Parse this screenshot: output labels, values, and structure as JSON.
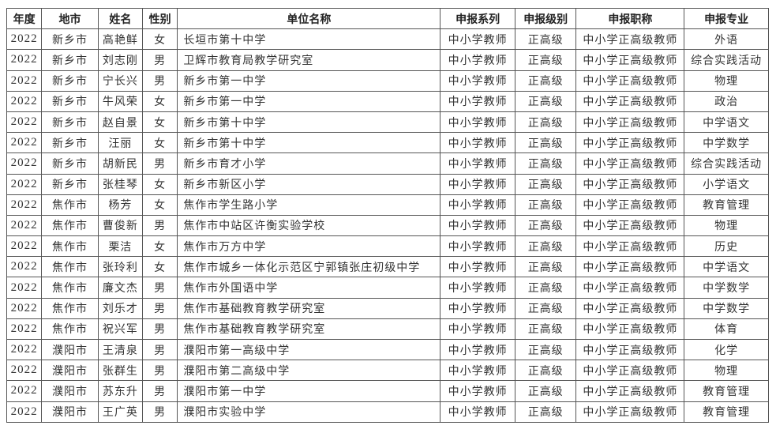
{
  "table": {
    "headers": [
      "年度",
      "地市",
      "姓名",
      "性别",
      "单位名称",
      "申报系列",
      "申报级别",
      "申报职称",
      "申报专业"
    ],
    "rows": [
      [
        "2022",
        "新乡市",
        "高艳鲜",
        "女",
        "长垣市第十中学",
        "中小学教师",
        "正高级",
        "中小学正高级教师",
        "外语"
      ],
      [
        "2022",
        "新乡市",
        "刘志刚",
        "男",
        "卫辉市教育局教学研究室",
        "中小学教师",
        "正高级",
        "中小学正高级教师",
        "综合实践活动"
      ],
      [
        "2022",
        "新乡市",
        "宁长兴",
        "男",
        "新乡市第一中学",
        "中小学教师",
        "正高级",
        "中小学正高级教师",
        "物理"
      ],
      [
        "2022",
        "新乡市",
        "牛风荣",
        "女",
        "新乡市第一中学",
        "中小学教师",
        "正高级",
        "中小学正高级教师",
        "政治"
      ],
      [
        "2022",
        "新乡市",
        "赵自景",
        "女",
        "新乡市第十中学",
        "中小学教师",
        "正高级",
        "中小学正高级教师",
        "中学语文"
      ],
      [
        "2022",
        "新乡市",
        "汪丽",
        "女",
        "新乡市第十中学",
        "中小学教师",
        "正高级",
        "中小学正高级教师",
        "中学数学"
      ],
      [
        "2022",
        "新乡市",
        "胡新民",
        "男",
        "新乡市育才小学",
        "中小学教师",
        "正高级",
        "中小学正高级教师",
        "综合实践活动"
      ],
      [
        "2022",
        "新乡市",
        "张桂琴",
        "女",
        "新乡市新区小学",
        "中小学教师",
        "正高级",
        "中小学正高级教师",
        "小学语文"
      ],
      [
        "2022",
        "焦作市",
        "杨芳",
        "女",
        "焦作市学生路小学",
        "中小学教师",
        "正高级",
        "中小学正高级教师",
        "教育管理"
      ],
      [
        "2022",
        "焦作市",
        "曹俊新",
        "男",
        "焦作市中站区许衡实验学校",
        "中小学教师",
        "正高级",
        "中小学正高级教师",
        "物理"
      ],
      [
        "2022",
        "焦作市",
        "栗洁",
        "女",
        "焦作市万方中学",
        "中小学教师",
        "正高级",
        "中小学正高级教师",
        "历史"
      ],
      [
        "2022",
        "焦作市",
        "张玲利",
        "女",
        "焦作市城乡一体化示范区宁郭镇张庄初级中学",
        "中小学教师",
        "正高级",
        "中小学正高级教师",
        "中学语文"
      ],
      [
        "2022",
        "焦作市",
        "廉文杰",
        "男",
        "焦作市外国语中学",
        "中小学教师",
        "正高级",
        "中小学正高级教师",
        "中学数学"
      ],
      [
        "2022",
        "焦作市",
        "刘乐才",
        "男",
        "焦作市基础教育教学研究室",
        "中小学教师",
        "正高级",
        "中小学正高级教师",
        "中学数学"
      ],
      [
        "2022",
        "焦作市",
        "祝兴军",
        "男",
        "焦作市基础教育教学研究室",
        "中小学教师",
        "正高级",
        "中小学正高级教师",
        "体育"
      ],
      [
        "2022",
        "濮阳市",
        "王清泉",
        "男",
        "濮阳市第一高级中学",
        "中小学教师",
        "正高级",
        "中小学正高级教师",
        "化学"
      ],
      [
        "2022",
        "濮阳市",
        "张群生",
        "男",
        "濮阳市第二高级中学",
        "中小学教师",
        "正高级",
        "中小学正高级教师",
        "物理"
      ],
      [
        "2022",
        "濮阳市",
        "苏东升",
        "男",
        "濮阳市第一中学",
        "中小学教师",
        "正高级",
        "中小学正高级教师",
        "教育管理"
      ],
      [
        "2022",
        "濮阳市",
        "王广英",
        "男",
        "濮阳市实验中学",
        "中小学教师",
        "正高级",
        "中小学正高级教师",
        "教育管理"
      ]
    ]
  }
}
